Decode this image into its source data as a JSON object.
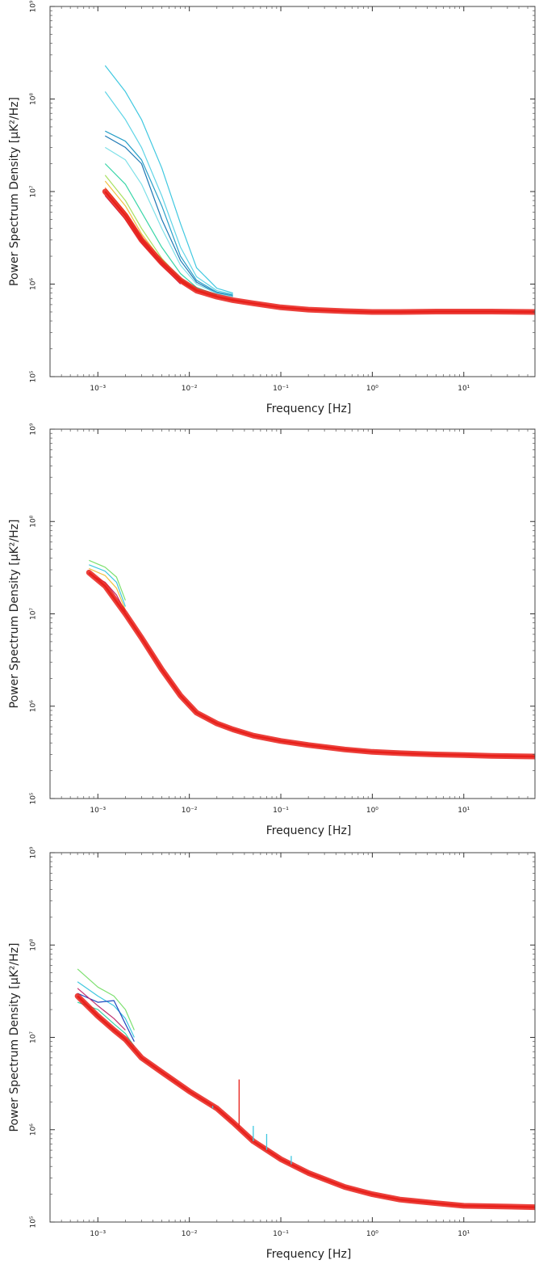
{
  "chart_data": [
    {
      "type": "line",
      "xlabel": "Frequency [Hz]",
      "ylabel": "Power Spectrum Density [μK²/Hz]",
      "xscale": "log",
      "yscale": "log",
      "xlim": [
        0.0003,
        60
      ],
      "ylim": [
        100000,
        1000000000
      ],
      "xticks": [
        0.001,
        0.01,
        0.1,
        1,
        10
      ],
      "xtick_labels": [
        "10⁻³",
        "10⁻²",
        "10⁻¹",
        "10⁰",
        "10¹"
      ],
      "yticks": [
        100000,
        1000000,
        10000000,
        100000000,
        1000000000
      ],
      "ytick_labels": [
        "10⁵",
        "10⁶",
        "10⁷",
        "10⁸",
        "10⁹"
      ],
      "grid": false,
      "legend": "none",
      "series": [
        {
          "color": "#40c8e0",
          "x": [
            0.0012,
            0.002,
            0.003,
            0.005,
            0.008,
            0.012,
            0.02,
            0.03
          ],
          "y": [
            230000000,
            120000000,
            60000000,
            18000000,
            4500000,
            1500000,
            900000,
            800000
          ]
        },
        {
          "color": "#5fd4e6",
          "x": [
            0.0012,
            0.002,
            0.003,
            0.005,
            0.008,
            0.012,
            0.02,
            0.03
          ],
          "y": [
            120000000,
            60000000,
            30000000,
            9000000,
            2500000,
            1200000,
            850000,
            780000
          ]
        },
        {
          "color": "#2aa0c8",
          "x": [
            0.0012,
            0.002,
            0.003,
            0.005,
            0.008,
            0.012,
            0.02,
            0.03
          ],
          "y": [
            45000000,
            35000000,
            22000000,
            7000000,
            2000000,
            1100000,
            820000,
            760000
          ]
        },
        {
          "color": "#1e78b4",
          "x": [
            0.0012,
            0.002,
            0.003,
            0.005,
            0.008,
            0.012,
            0.02,
            0.03
          ],
          "y": [
            40000000,
            30000000,
            20000000,
            5000000,
            1800000,
            1050000,
            800000,
            740000
          ]
        },
        {
          "color": "#7ee0e8",
          "x": [
            0.0012,
            0.002,
            0.003,
            0.005,
            0.008,
            0.012,
            0.02,
            0.03
          ],
          "y": [
            30000000,
            22000000,
            12000000,
            4000000,
            1600000,
            1000000,
            790000,
            730000
          ]
        },
        {
          "color": "#3ad6a8",
          "x": [
            0.0012,
            0.002,
            0.003,
            0.005,
            0.008,
            0.012,
            0.02
          ],
          "y": [
            20000000,
            12000000,
            6000000,
            2500000,
            1300000,
            920000,
            760000
          ]
        },
        {
          "color": "#a8e060",
          "x": [
            0.0012,
            0.002,
            0.003,
            0.005,
            0.008,
            0.012,
            0.02
          ],
          "y": [
            15000000,
            8000000,
            4000000,
            1900000,
            1150000,
            880000,
            740000
          ]
        },
        {
          "color": "#f0c040",
          "x": [
            0.0012,
            0.002,
            0.003,
            0.005,
            0.008,
            0.012,
            0.02
          ],
          "y": [
            13000000,
            7000000,
            3500000,
            1800000,
            1100000,
            860000,
            730000
          ]
        },
        {
          "color": "#f07830",
          "x": [
            0.0012,
            0.002,
            0.003,
            0.005,
            0.008,
            0.012,
            0.02
          ],
          "y": [
            11000000,
            6000000,
            3200000,
            1700000,
            1050000,
            840000,
            720000
          ]
        },
        {
          "color": "#c03070",
          "x": [
            0.0012,
            0.002,
            0.003,
            0.005,
            0.008
          ],
          "y": [
            9000000,
            5000000,
            2800000,
            1600000,
            1000000
          ]
        },
        {
          "color": "#e8201a",
          "x": [
            0.0012,
            0.002,
            0.003,
            0.005,
            0.008,
            0.012,
            0.02,
            0.03,
            0.05,
            0.1,
            0.2,
            0.5,
            1,
            2,
            5,
            10,
            20,
            60
          ],
          "y": [
            10000000,
            5500000,
            3000000,
            1700000,
            1100000,
            850000,
            730000,
            670000,
            620000,
            560000,
            530000,
            510000,
            500000,
            500000,
            505000,
            505000,
            505000,
            500000
          ]
        }
      ]
    },
    {
      "type": "line",
      "xlabel": "Frequency [Hz]",
      "ylabel": "Power Spectrum Density [μK²/Hz]",
      "xscale": "log",
      "yscale": "log",
      "xlim": [
        0.0003,
        60
      ],
      "ylim": [
        100000,
        1000000000
      ],
      "xticks": [
        0.001,
        0.01,
        0.1,
        1,
        10
      ],
      "xtick_labels": [
        "10⁻³",
        "10⁻²",
        "10⁻¹",
        "10⁰",
        "10¹"
      ],
      "yticks": [
        100000,
        1000000,
        10000000,
        100000000,
        1000000000
      ],
      "ytick_labels": [
        "10⁵",
        "10⁶",
        "10⁷",
        "10⁸",
        "10⁹"
      ],
      "grid": false,
      "legend": "none",
      "series": [
        {
          "color": "#7ee070",
          "x": [
            0.0008,
            0.0012,
            0.0016,
            0.002
          ],
          "y": [
            38000000,
            32000000,
            25000000,
            14000000
          ]
        },
        {
          "color": "#40c8e0",
          "x": [
            0.0008,
            0.0012,
            0.0016,
            0.002
          ],
          "y": [
            34000000,
            29000000,
            22000000,
            12000000
          ]
        },
        {
          "color": "#f0c040",
          "x": [
            0.0008,
            0.0012,
            0.0016,
            0.002
          ],
          "y": [
            31000000,
            26000000,
            19000000,
            11000000
          ]
        },
        {
          "color": "#c03070",
          "x": [
            0.0008,
            0.0012,
            0.0016,
            0.002
          ],
          "y": [
            27000000,
            22000000,
            16000000,
            10500000
          ]
        },
        {
          "color": "#e8201a",
          "x": [
            0.0008,
            0.0012,
            0.002,
            0.003,
            0.005,
            0.008,
            0.012,
            0.02,
            0.03,
            0.05,
            0.1,
            0.2,
            0.5,
            1,
            2,
            5,
            10,
            20,
            60
          ],
          "y": [
            28000000,
            20000000,
            10000000,
            5500000,
            2500000,
            1300000,
            850000,
            650000,
            560000,
            480000,
            420000,
            380000,
            340000,
            320000,
            310000,
            300000,
            295000,
            290000,
            285000
          ]
        }
      ]
    },
    {
      "type": "line",
      "xlabel": "Frequency [Hz]",
      "ylabel": "Power Spectrum Density [μK²/Hz]",
      "xscale": "log",
      "yscale": "log",
      "xlim": [
        0.0003,
        60
      ],
      "ylim": [
        100000,
        1000000000
      ],
      "xticks": [
        0.001,
        0.01,
        0.1,
        1,
        10
      ],
      "xtick_labels": [
        "10⁻³",
        "10⁻²",
        "10⁻¹",
        "10⁰",
        "10¹"
      ],
      "yticks": [
        100000,
        1000000,
        10000000,
        100000000,
        1000000000
      ],
      "ytick_labels": [
        "10⁵",
        "10⁶",
        "10⁷",
        "10⁸",
        "10⁹"
      ],
      "grid": false,
      "legend": "none",
      "series": [
        {
          "color": "#7ee070",
          "x": [
            0.0006,
            0.001,
            0.0015,
            0.002,
            0.0025
          ],
          "y": [
            55000000,
            35000000,
            28000000,
            20000000,
            12000000
          ]
        },
        {
          "color": "#40c8e0",
          "x": [
            0.0006,
            0.001,
            0.0015,
            0.002,
            0.0025
          ],
          "y": [
            40000000,
            28000000,
            22000000,
            16000000,
            10000000
          ]
        },
        {
          "color": "#1e48c0",
          "x": [
            0.0006,
            0.001,
            0.0015,
            0.002,
            0.0025
          ],
          "y": [
            30000000,
            24000000,
            25000000,
            14000000,
            9000000
          ]
        },
        {
          "color": "#3ad6a8",
          "x": [
            0.0006,
            0.001,
            0.0015,
            0.002,
            0.0025
          ],
          "y": [
            24000000,
            20000000,
            14000000,
            11000000,
            8000000
          ]
        },
        {
          "color": "#c03070",
          "x": [
            0.0006,
            0.001,
            0.0015,
            0.002
          ],
          "y": [
            34000000,
            22000000,
            16000000,
            12000000
          ]
        },
        {
          "color": "#e8201a",
          "x": [
            0.0006,
            0.001,
            0.0015,
            0.002,
            0.003,
            0.005,
            0.01,
            0.02,
            0.03,
            0.05,
            0.1,
            0.2,
            0.5,
            1,
            2,
            5,
            10,
            20,
            60
          ],
          "y": [
            28000000,
            17000000,
            12000000,
            9500000,
            6000000,
            4200000,
            2600000,
            1700000,
            1200000,
            750000,
            480000,
            340000,
            240000,
            200000,
            175000,
            160000,
            150000,
            148000,
            145000
          ]
        }
      ],
      "spikes": [
        {
          "color": "#40c8e0",
          "x": 0.018,
          "y": 1700000
        },
        {
          "color": "#e8201a",
          "x": 0.035,
          "y": 3500000
        },
        {
          "color": "#40c8e0",
          "x": 0.05,
          "y": 1100000
        },
        {
          "color": "#40c8e0",
          "x": 0.07,
          "y": 900000
        },
        {
          "color": "#40c8e0",
          "x": 0.13,
          "y": 520000
        }
      ]
    }
  ]
}
